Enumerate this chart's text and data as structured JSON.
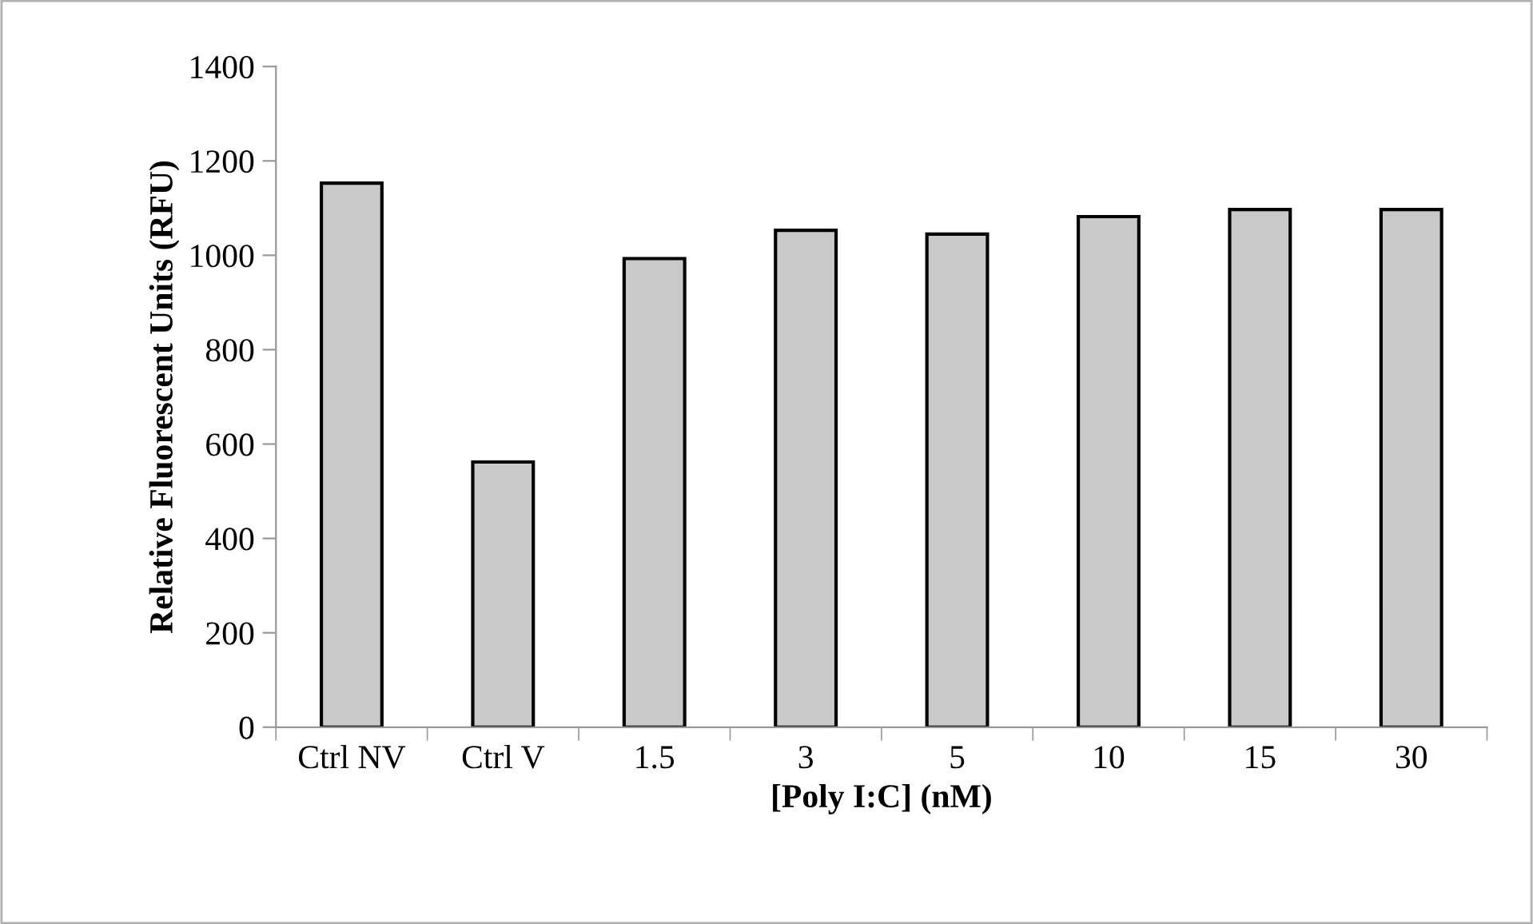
{
  "chart_data": {
    "type": "bar",
    "xlabel": "[Poly I:C] (nM)",
    "ylabel": "Relative Fluorescent Units (RFU)",
    "categories": [
      "Ctrl NV",
      "Ctrl V",
      "1.5",
      "3",
      "5",
      "10",
      "15",
      "30"
    ],
    "values": [
      1153,
      562,
      993,
      1053,
      1045,
      1082,
      1097,
      1097
    ],
    "color": "#c9c9c9",
    "ylim": [
      0,
      1400
    ],
    "yticks": [
      0,
      200,
      400,
      600,
      800,
      1000,
      1200,
      1400
    ],
    "grid": false
  }
}
